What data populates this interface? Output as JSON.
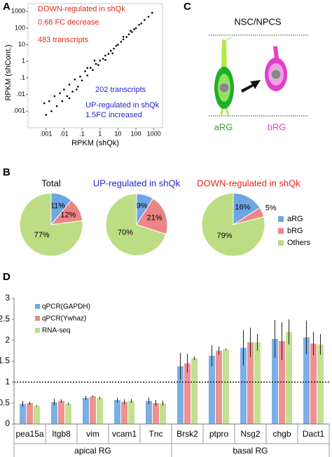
{
  "chart_data": [
    {
      "type": "scatter",
      "panel_label": "A",
      "x_label": "RPKM (shQk)",
      "y_label": "RPKM (shCont.)",
      "log_scale": true,
      "xlim": [
        0.0001,
        3000
      ],
      "ylim": [
        0.0001,
        3000
      ],
      "xticks": [
        {
          "value": 0.001,
          "label": ".001"
        },
        {
          "value": 0.01,
          "label": ".01"
        },
        {
          "value": 0.1,
          "label": ".1"
        },
        1,
        10,
        100,
        1000
      ],
      "yticks": [
        {
          "value": 0.001,
          "label": ".001"
        },
        {
          "value": 0.01,
          "label": ".01"
        },
        {
          "value": 0.1,
          "label": ".1"
        },
        1,
        10,
        100,
        1000
      ],
      "color": "#000000",
      "annotations_top": [
        {
          "text": "DOWN-regulated in shQk",
          "color": "#e8251f"
        },
        {
          "text": "0.66 FC decrease",
          "color": "#e8251f"
        },
        {
          "text": "483 transcripts",
          "color": "#e8251f"
        }
      ],
      "annotations_bottom": [
        {
          "text": "202 transcripts",
          "color": "#2323c8"
        },
        {
          "text": "UP-regulated in shQk",
          "color": "#2323c8"
        },
        {
          "text": "1.5FC increased",
          "color": "#2323c8"
        }
      ],
      "x": [
        0.0008,
        0.001,
        0.0015,
        0.002,
        0.003,
        0.004,
        0.006,
        0.008,
        0.01,
        0.015,
        0.02,
        0.03,
        0.04,
        0.06,
        0.08,
        0.1,
        0.15,
        0.2,
        0.3,
        0.4,
        0.6,
        0.8,
        1,
        1.5,
        2,
        3,
        4,
        6,
        8,
        10,
        15,
        20,
        30,
        40,
        60,
        80,
        100,
        150,
        200,
        300,
        500,
        800,
        0.05,
        0.5,
        5,
        50,
        0.02,
        0.2,
        2,
        20
      ],
      "values": [
        0.003,
        0.0006,
        0.004,
        0.001,
        0.008,
        0.002,
        0.012,
        0.004,
        0.02,
        0.008,
        0.04,
        0.015,
        0.08,
        0.03,
        0.12,
        0.07,
        0.25,
        0.14,
        0.4,
        0.3,
        0.7,
        0.6,
        1.1,
        1.4,
        2.2,
        2.8,
        4.3,
        5.8,
        8.5,
        10,
        15,
        21,
        29,
        42,
        58,
        85,
        98,
        160,
        190,
        310,
        480,
        820,
        0.02,
        1.1,
        3,
        70,
        0.006,
        0.4,
        1.2,
        30
      ]
    },
    {
      "type": "pie",
      "panel_label": "B",
      "categories": [
        "aRG",
        "bRG",
        "Others"
      ],
      "colors": [
        "#6ea6e4",
        "#ec8585",
        "#bddd84"
      ],
      "pies": [
        {
          "title": "Total",
          "title_color": "#000000",
          "values": [
            11,
            12,
            77
          ],
          "value_labels": [
            "11%",
            "12%",
            "77%"
          ]
        },
        {
          "title": "UP-regulated in shQk",
          "title_color": "#2323c8",
          "values": [
            9,
            21,
            70
          ],
          "value_labels": [
            "9%",
            "21%",
            "70%"
          ]
        },
        {
          "title": "DOWN-regulated in shQk",
          "title_color": "#e8251f",
          "values": [
            16,
            5,
            79
          ],
          "value_labels": [
            "16%",
            "5%",
            "79%"
          ]
        }
      ]
    },
    {
      "type": "bar",
      "panel_label": "D",
      "categories": [
        "pea15a",
        "Itgb8",
        "vim",
        "vcam1",
        "Tnc",
        "Brsk2",
        "ptpro",
        "Nsg2",
        "chgb",
        "Dact1"
      ],
      "groups": [
        {
          "label": "apical RG",
          "count": 5
        },
        {
          "label": "basal RG",
          "count": 5
        }
      ],
      "ylim": [
        0,
        3
      ],
      "yticks": [
        0,
        0.5,
        1,
        1.5,
        2,
        2.5,
        3
      ],
      "reference_line": 1,
      "series": [
        {
          "name": "qPCR(GAPDH)",
          "color": "#6ea6e4",
          "values": [
            0.48,
            0.52,
            0.62,
            0.57,
            0.55,
            1.38,
            1.63,
            1.82,
            2.03,
            2.07
          ],
          "errors": [
            0.07,
            0.08,
            0.05,
            0.06,
            0.08,
            0.32,
            0.25,
            0.42,
            0.45,
            0.4
          ]
        },
        {
          "name": "qPCR(Ywhaz)",
          "color": "#ec8585",
          "values": [
            0.5,
            0.55,
            0.66,
            0.53,
            0.5,
            1.45,
            1.75,
            1.95,
            1.98,
            1.92
          ],
          "errors": [
            0.04,
            0.04,
            0.02,
            0.06,
            0.07,
            0.22,
            0.1,
            0.35,
            0.45,
            0.28
          ]
        },
        {
          "name": "RNA-seq",
          "color": "#bddd84",
          "values": [
            0.43,
            0.48,
            0.62,
            0.55,
            0.5,
            1.57,
            1.78,
            1.95,
            2.2,
            1.9
          ],
          "errors": [
            0.02,
            0.03,
            0.03,
            0.05,
            0.06,
            0.05,
            0.02,
            0.2,
            0.3,
            0.25
          ]
        }
      ]
    }
  ],
  "diagram": {
    "panel_label": "C",
    "title": "NSC/NPCS",
    "cells": [
      {
        "label": "aRG",
        "color": "#2ca02c"
      },
      {
        "label": "bRG",
        "color": "#e23fc8"
      }
    ]
  }
}
